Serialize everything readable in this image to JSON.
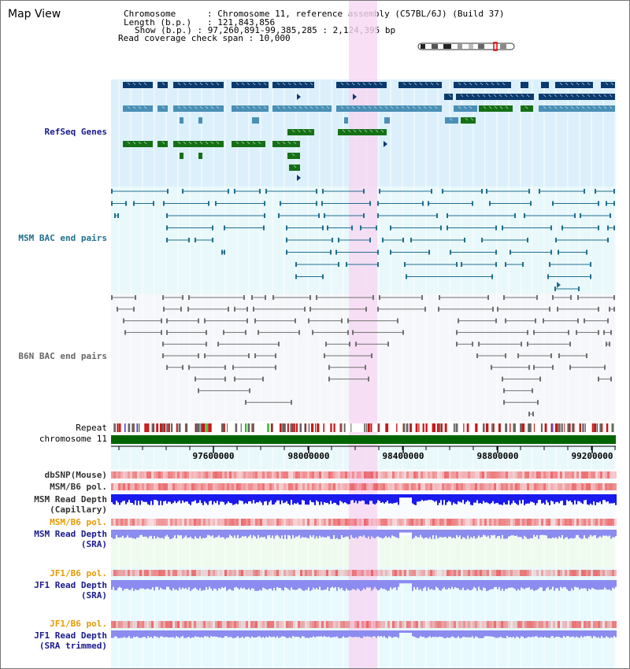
{
  "title": "Map View",
  "info": {
    "chromosome_label": "Chromosome",
    "chromosome_value": "Chromosome 11, reference assembly (C57BL/6J) (Build 37)",
    "length_label": "Length (b.p.)",
    "length_value": "121,843,856",
    "show_label": "Show (b.p.)",
    "show_value": "97,260,891-99,385,285 : 2,124,395 bp",
    "coverage_label": "Read coverage check span",
    "coverage_value": "10,000"
  },
  "tracks": {
    "refseq": "RefSeq Genes",
    "msm_bac": "MSM BAC end pairs",
    "b6n_bac": "B6N BAC end pairs",
    "repeat": "Repeat",
    "chromosome": "chromosome 11",
    "dbsnp": "dbSNP(Mouse)",
    "msm_b6_pol_1": "MSM/B6 pol.",
    "msm_depth_cap_1": "MSM Read Depth",
    "msm_depth_cap_2": "(Capillary)",
    "msm_b6_pol_2": "MSM/B6 pol.",
    "msm_depth_sra_1": "MSM Read Depth",
    "msm_depth_sra_2": "(SRA)",
    "jf1_pol_1": "JF1/B6 pol.",
    "jf1_depth_sra_1": "JF1 Read Depth",
    "jf1_depth_sra_2": "(SRA)",
    "jf1_pol_2": "JF1/B6 pol.",
    "jf1_depth_trim_1": "JF1 Read Depth",
    "jf1_depth_trim_2": "(SRA trimmed)"
  },
  "axis": {
    "ticks": [
      "97600000",
      "98000000",
      "98400000",
      "98800000",
      "99200000"
    ]
  },
  "colors": {
    "refseq_dark": "#0b3a6e",
    "refseq_mid": "#4a8fb5",
    "refseq_green": "#157015",
    "msm_bac": "#1f6f8f",
    "b6n_bac": "#707070",
    "highlight": "#f6d7f2",
    "chromosome_bar": "#006400",
    "depth_capillary": "#1a1aee",
    "depth_sra": "#8c8cf0",
    "pol_red": "#e83a3a"
  }
}
